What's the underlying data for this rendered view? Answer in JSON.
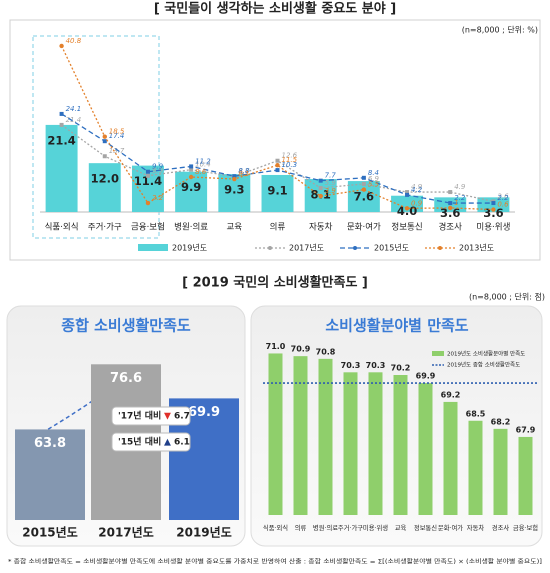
{
  "chart_data": [
    {
      "type": "combo",
      "title": "[ 국민들이 생각하는 소비생활 중요도 분야 ]",
      "subtitle": "(n=8,000 ; 단위: %)",
      "categories": [
        "식품·외식",
        "주거·가구",
        "금융·보험",
        "병원·의료",
        "교육",
        "의류",
        "자동차",
        "문화·여가",
        "정보통신",
        "경조사",
        "미용·위생"
      ],
      "ylim": [
        0,
        43
      ],
      "series": [
        {
          "name": "2019년도",
          "type": "bar",
          "color": "#56d3d8",
          "values": [
            21.4,
            12.0,
            11.4,
            9.9,
            9.3,
            9.1,
            8.1,
            7.6,
            4.0,
            3.6,
            3.6
          ],
          "value_labels": [
            "21.4",
            "12.0",
            "11.4",
            "9.9",
            "9.3",
            "9.1",
            "8.1",
            "7.6",
            "4.0",
            "3.6",
            "3.6"
          ]
        },
        {
          "name": "2017년도",
          "type": "line",
          "color": "#a5a5a5",
          "values": [
            21.4,
            13.7,
            8.9,
            10.4,
            8.7,
            12.6,
            5.9,
            6.9,
            4.9,
            4.9,
            2.6
          ]
        },
        {
          "name": "2015년도",
          "type": "line",
          "color": "#2e6fc0",
          "values": [
            24.1,
            17.4,
            9.9,
            11.2,
            8.8,
            10.3,
            7.7,
            8.4,
            4.2,
            2.2,
            2.2
          ]
        },
        {
          "name": "2013년도",
          "type": "line",
          "color": "#e3802b",
          "values": [
            40.8,
            18.5,
            2.2,
            8.6,
            8.1,
            11.5,
            3.9,
            5.5,
            0.9,
            1.0,
            0.6
          ]
        }
      ]
    },
    {
      "type": "bar",
      "section_title": "[ 2019 국민의 소비생활만족도 ]",
      "subtitle": "(n=8,000 ; 단위: 점)",
      "title": "종합 소비생활만족도",
      "categories": [
        "2015년도",
        "2017년도",
        "2019년도"
      ],
      "values": [
        63.8,
        76.6,
        69.9
      ],
      "colors": [
        "#8497b0",
        "#a6a6a6",
        "#3f6fc6"
      ],
      "ylim": [
        46,
        80
      ],
      "annotations": [
        {
          "text": "'17년 대비",
          "symbol": "▼",
          "value": 6.7
        },
        {
          "text": "'15년 대비",
          "symbol": "▲",
          "value": 6.1
        }
      ]
    },
    {
      "type": "bar",
      "title": "소비생활분야별 만족도",
      "categories": [
        "식품·외식",
        "의류",
        "병원·의료",
        "주거·가구",
        "미용·위생",
        "교육",
        "정보통신",
        "문화·여가",
        "자동차",
        "경조사",
        "금융·보험"
      ],
      "series": [
        {
          "name": "2019년도 소비생활분야별 만족도",
          "color": "#8fcf6b",
          "values": [
            71.0,
            70.9,
            70.8,
            70.3,
            70.3,
            70.2,
            69.9,
            69.2,
            68.5,
            68.2,
            67.9
          ],
          "value_labels": [
            "71.0",
            "70.9",
            "70.8",
            "70.3",
            "70.3",
            "70.2",
            "69.9",
            "69.2",
            "68.5",
            "68.2",
            "67.9"
          ]
        }
      ],
      "reference": {
        "name": "2019년도 종합 소비생활만족도",
        "value": 69.9,
        "color": "#2e5fb0"
      },
      "ylim": [
        65,
        71.5
      ],
      "footnote": "* 종합 소비생활만족도 = 소비생활분야별 만족도에 소비생활 분야별 중요도를 가중치로 반영하여 산출 : 종합 소비생활만족도 = Σ[(소비생활분야별 만족도) × (소비생활 분야별 중요도)]"
    }
  ]
}
